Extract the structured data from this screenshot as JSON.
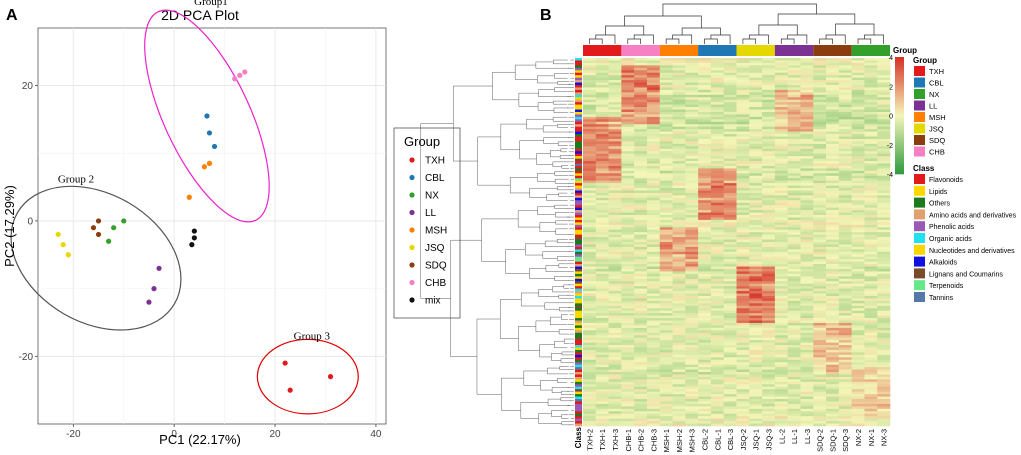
{
  "panels": {
    "a": "A",
    "b": "B"
  },
  "colors": {
    "TXH": "#e31a1c",
    "CBL": "#1f78b4",
    "NX": "#33a02c",
    "LL": "#7b3294",
    "MSH": "#ff7f00",
    "JSQ": "#e5d800",
    "SDQ": "#8c3d10",
    "CHB": "#f77fc4",
    "mix": "#111111",
    "ellipse_group1": "#ee22cc",
    "ellipse_group2": "#555555",
    "ellipse_group3": "#e00000"
  },
  "chart_data": [
    {
      "type": "scatter",
      "title": "2D PCA Plot",
      "xlabel": "PC1 (22.17%)",
      "ylabel": "PC2 (17.29%)",
      "xlim": [
        -27,
        42
      ],
      "ylim": [
        -30,
        28.5
      ],
      "xticks": [
        -20,
        0,
        20,
        40
      ],
      "yticks": [
        -20,
        0,
        20
      ],
      "grid": true,
      "legend": {
        "title": "Group",
        "position": "right",
        "entries": [
          "TXH",
          "CBL",
          "NX",
          "LL",
          "MSH",
          "JSQ",
          "SDQ",
          "CHB",
          "mix"
        ]
      },
      "series": [
        {
          "name": "TXH",
          "points": [
            [
              22,
              -21
            ],
            [
              23,
              -25
            ],
            [
              31,
              -23
            ]
          ]
        },
        {
          "name": "CBL",
          "points": [
            [
              6.5,
              15.5
            ],
            [
              7,
              13
            ],
            [
              8,
              11
            ]
          ]
        },
        {
          "name": "NX",
          "points": [
            [
              -10,
              0
            ],
            [
              -12,
              -1
            ],
            [
              -13,
              -3
            ]
          ]
        },
        {
          "name": "LL",
          "points": [
            [
              -3,
              -7
            ],
            [
              -4,
              -10
            ],
            [
              -5,
              -12
            ]
          ]
        },
        {
          "name": "MSH",
          "points": [
            [
              6,
              8
            ],
            [
              7,
              8.5
            ],
            [
              3,
              3.5
            ]
          ]
        },
        {
          "name": "JSQ",
          "points": [
            [
              -21,
              -5
            ],
            [
              -22,
              -3.5
            ],
            [
              -23,
              -2
            ]
          ]
        },
        {
          "name": "SDQ",
          "points": [
            [
              -15,
              0
            ],
            [
              -16,
              -1
            ],
            [
              -15,
              -2
            ]
          ]
        },
        {
          "name": "CHB",
          "points": [
            [
              12,
              21
            ],
            [
              13,
              21.5
            ],
            [
              14,
              22
            ]
          ]
        },
        {
          "name": "mix",
          "points": [
            [
              3.5,
              -3.5
            ],
            [
              4,
              -2.5
            ],
            [
              4,
              -1.5
            ]
          ]
        }
      ],
      "ellipses": [
        {
          "label": "Group1",
          "cx": 6.5,
          "cy": 15.5,
          "rx": 8.5,
          "ry": 17,
          "angle_deg": 25
        },
        {
          "label": "Group 2",
          "cx": -15.5,
          "cy": -5.5,
          "rx": 18,
          "ry": 9.5,
          "angle_deg": -30
        },
        {
          "label": "Group 3",
          "cx": 26.5,
          "cy": -23,
          "rx": 10,
          "ry": 5.5,
          "angle_deg": 0
        }
      ]
    },
    {
      "type": "heatmap",
      "columns": [
        "TXH-2",
        "TXH-1",
        "TXH-3",
        "CHB-1",
        "CHB-2",
        "CHB-3",
        "MSH-1",
        "MSH-2",
        "MSH-3",
        "CBL-2",
        "CBL-1",
        "CBL-3",
        "JSQ-2",
        "JSQ-1",
        "JSQ-3",
        "LL-2",
        "LL-1",
        "LL-3",
        "SDQ-2",
        "SDQ-1",
        "SDQ-3",
        "NX-2",
        "NX-1",
        "NX-3"
      ],
      "group_order": [
        "TXH",
        "CHB",
        "MSH",
        "CBL",
        "JSQ",
        "LL",
        "SDQ",
        "NX"
      ],
      "color_scale": {
        "min": -4,
        "max": 4,
        "ticks": [
          4,
          2,
          0,
          -2,
          -4
        ],
        "low": "#2e9a3d",
        "mid": "#f4f6b8",
        "high": "#d62f26"
      },
      "row_annotation_label": "Class",
      "col_annotation_label": "Group",
      "legend_group": {
        "title": "Group",
        "entries": [
          "TXH",
          "CBL",
          "NX",
          "LL",
          "MSH",
          "JSQ",
          "SDQ",
          "CHB"
        ]
      },
      "legend_class": {
        "title": "Class",
        "entries": [
          {
            "name": "Flavonoids",
            "color": "#e31a1c"
          },
          {
            "name": "Lipids",
            "color": "#ffd700"
          },
          {
            "name": "Others",
            "color": "#1b7a1b"
          },
          {
            "name": "Amino acids and derivatives",
            "color": "#e0a070"
          },
          {
            "name": "Phenolic acids",
            "color": "#9b59b6"
          },
          {
            "name": "Organic acids",
            "color": "#22e0f0"
          },
          {
            "name": "Nucleotides and derivatives",
            "color": "#ffd500"
          },
          {
            "name": "Alkaloids",
            "color": "#1010e0"
          },
          {
            "name": "Lignans and Coumarins",
            "color": "#7a4a2a"
          },
          {
            "name": "Terpenoids",
            "color": "#66e88a"
          },
          {
            "name": "Tannins",
            "color": "#5577aa"
          }
        ]
      },
      "row_blocks": [
        {
          "group": "CHB",
          "start": 0.02,
          "end": 0.18,
          "level": 2.6
        },
        {
          "group": "TXH",
          "start": 0.16,
          "end": 0.34,
          "level": 2.4
        },
        {
          "group": "LL",
          "start": 0.09,
          "end": 0.2,
          "level": 1.8
        },
        {
          "group": "CBL",
          "start": 0.3,
          "end": 0.44,
          "level": 2.5
        },
        {
          "group": "MSH",
          "start": 0.46,
          "end": 0.58,
          "level": 1.9
        },
        {
          "group": "JSQ",
          "start": 0.57,
          "end": 0.72,
          "level": 2.7
        },
        {
          "group": "SDQ",
          "start": 0.72,
          "end": 0.86,
          "level": 1.2
        },
        {
          "group": "NX",
          "start": 0.84,
          "end": 0.97,
          "level": 0.9
        }
      ]
    }
  ]
}
